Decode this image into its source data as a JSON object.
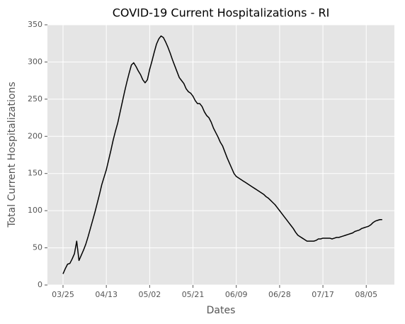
{
  "chart_data": {
    "type": "line",
    "title": "COVID-19 Current Hospitalizations - RI",
    "x_label": "Dates",
    "y_label": "Total Current Hospitalizations",
    "color": "#000000",
    "grid": true,
    "ylim": [
      0,
      350
    ],
    "yticks": [
      0,
      50,
      100,
      150,
      200,
      250,
      300,
      350
    ],
    "categories": [
      "03/25",
      null,
      null,
      null,
      null,
      null,
      null,
      null,
      null,
      null,
      null,
      null,
      null,
      null,
      null,
      null,
      null,
      null,
      null,
      "04/13",
      null,
      null,
      null,
      null,
      null,
      null,
      null,
      null,
      null,
      null,
      null,
      null,
      null,
      null,
      null,
      null,
      null,
      null,
      "05/02",
      null,
      null,
      null,
      null,
      null,
      null,
      null,
      null,
      null,
      null,
      null,
      null,
      null,
      null,
      null,
      null,
      null,
      null,
      "05/21",
      null,
      null,
      null,
      null,
      null,
      null,
      null,
      null,
      null,
      null,
      null,
      null,
      null,
      null,
      null,
      null,
      null,
      null,
      "06/09",
      null,
      null,
      null,
      null,
      null,
      null,
      null,
      null,
      null,
      null,
      null,
      null,
      null,
      null,
      null,
      null,
      null,
      null,
      "06/28",
      null,
      null,
      null,
      null,
      null,
      null,
      null,
      null,
      null,
      null,
      null,
      null,
      null,
      null,
      null,
      null,
      null,
      null,
      "07/17",
      null,
      null,
      null,
      null,
      null,
      null,
      null,
      null,
      null,
      null,
      null,
      null,
      null,
      null,
      null,
      null,
      null,
      null,
      "08/05",
      null,
      null,
      null,
      null,
      null,
      null,
      null
    ],
    "values": [
      15,
      22,
      28,
      29,
      35,
      42,
      59,
      33,
      40,
      47,
      55,
      65,
      76,
      87,
      98,
      110,
      122,
      135,
      145,
      155,
      168,
      181,
      195,
      207,
      218,
      232,
      246,
      260,
      273,
      285,
      296,
      299,
      294,
      288,
      283,
      276,
      272,
      276,
      290,
      301,
      313,
      324,
      331,
      335,
      333,
      327,
      320,
      312,
      303,
      295,
      287,
      279,
      275,
      271,
      264,
      260,
      258,
      254,
      248,
      244,
      244,
      240,
      233,
      228,
      225,
      219,
      211,
      205,
      199,
      192,
      187,
      179,
      171,
      164,
      157,
      150,
      146,
      144,
      142,
      140,
      138,
      136,
      134,
      132,
      130,
      128,
      126,
      124,
      122,
      119,
      117,
      114,
      111,
      108,
      104,
      100,
      96,
      92,
      88,
      84,
      80,
      76,
      71,
      67,
      65,
      63,
      61,
      59,
      59,
      59,
      59,
      60,
      62,
      62,
      63,
      63,
      63,
      63,
      62,
      63,
      64,
      64,
      65,
      66,
      67,
      68,
      69,
      70,
      72,
      73,
      74,
      76,
      77,
      78,
      79,
      81,
      84,
      86,
      87,
      88,
      88
    ]
  }
}
